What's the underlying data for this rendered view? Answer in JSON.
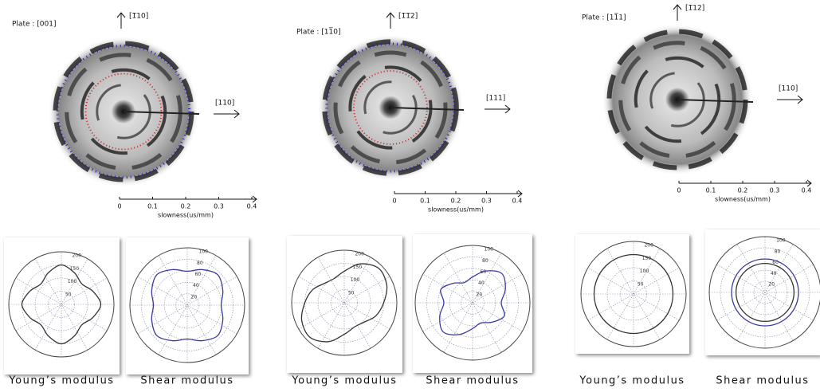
{
  "panels": [
    {
      "plate": "Plate : [001]",
      "up_direction": "[1̅10]",
      "right_direction": "[110]",
      "slowness_axis": {
        "label": "slowness(us/mm)",
        "xlim": [
          0,
          0.4
        ],
        "xticks": [
          0,
          0.1,
          0.2,
          0.3,
          0.4
        ]
      },
      "plots": [
        {
          "type": "polar",
          "caption": "Young’s modulus",
          "rlim": [
            0,
            200
          ],
          "rticks": [
            50,
            100,
            150,
            200
          ],
          "theta": [
            0,
            22.5,
            45,
            67.5,
            90,
            112.5,
            135,
            157.5,
            180,
            202.5,
            225,
            247.5,
            270,
            292.5,
            315,
            337.5
          ],
          "series": [
            {
              "color": "#333333",
              "values": [
                150,
                130,
                110,
                130,
                150,
                130,
                110,
                130,
                150,
                130,
                110,
                130,
                150,
                130,
                110,
                130
              ]
            }
          ]
        },
        {
          "type": "polar",
          "caption": "Shear modulus",
          "rlim": [
            0,
            100
          ],
          "rticks": [
            20,
            40,
            60,
            80,
            100
          ],
          "theta": [
            0,
            22.5,
            45,
            67.5,
            90,
            112.5,
            135,
            157.5,
            180,
            202.5,
            225,
            247.5,
            270,
            292.5,
            315,
            337.5
          ],
          "series": [
            {
              "color": "#3a3aa0",
              "values": [
                59,
                67,
                75,
                67,
                59,
                67,
                75,
                67,
                59,
                67,
                75,
                67,
                59,
                67,
                75,
                67
              ]
            }
          ]
        }
      ]
    },
    {
      "plate": "Plate : [11̅0]",
      "up_direction": "[1̅1̅2]",
      "right_direction": "[111]",
      "slowness_axis": {
        "label": "slowness(us/mm)",
        "xlim": [
          0,
          0.4
        ],
        "xticks": [
          0,
          0.1,
          0.2,
          0.3,
          0.4
        ]
      },
      "plots": [
        {
          "type": "polar",
          "caption": "Young’s modulus",
          "rlim": [
            0,
            200
          ],
          "rticks": [
            50,
            100,
            150,
            200
          ],
          "theta": [
            0,
            22.5,
            45,
            67.5,
            90,
            112.5,
            135,
            157.5,
            180,
            202.5,
            225,
            247.5,
            270,
            292.5,
            315,
            337.5
          ],
          "series": [
            {
              "color": "#333333",
              "values": [
                150,
                175,
                185,
                160,
                120,
                100,
                105,
                130,
                150,
                175,
                185,
                160,
                120,
                100,
                105,
                130
              ]
            }
          ]
        },
        {
          "type": "polar",
          "caption": "Shear modulus",
          "rlim": [
            0,
            100
          ],
          "rticks": [
            20,
            40,
            60,
            80,
            100
          ],
          "theta": [
            0,
            22.5,
            45,
            67.5,
            90,
            112.5,
            135,
            157.5,
            180,
            202.5,
            225,
            247.5,
            270,
            292.5,
            315,
            337.5
          ],
          "series": [
            {
              "color": "#3a3aa0",
              "values": [
                50,
                62,
                72,
                60,
                45,
                38,
                48,
                60,
                50,
                62,
                72,
                60,
                45,
                38,
                48,
                60
              ]
            }
          ]
        }
      ]
    },
    {
      "plate": "Plate : [11̅1]",
      "up_direction": "[1̅12]",
      "right_direction": "[110]",
      "slowness_axis": {
        "label": "slowness(us/mm)",
        "xlim": [
          0,
          0.4
        ],
        "xticks": [
          0,
          0.1,
          0.2,
          0.3,
          0.4
        ]
      },
      "plots": [
        {
          "type": "polar",
          "caption": "Young’s modulus",
          "rlim": [
            0,
            200
          ],
          "rticks": [
            50,
            100,
            150,
            200
          ],
          "theta": [
            0,
            22.5,
            45,
            67.5,
            90,
            112.5,
            135,
            157.5,
            180,
            202.5,
            225,
            247.5,
            270,
            292.5,
            315,
            337.5
          ],
          "series": [
            {
              "color": "#333333",
              "values": [
                150,
                150,
                150,
                150,
                150,
                150,
                150,
                150,
                150,
                150,
                150,
                150,
                150,
                150,
                150,
                150
              ]
            }
          ]
        },
        {
          "type": "polar",
          "caption": "Shear modulus",
          "rlim": [
            0,
            100
          ],
          "rticks": [
            20,
            40,
            60,
            80,
            100
          ],
          "theta": [
            0,
            22.5,
            45,
            67.5,
            90,
            112.5,
            135,
            157.5,
            180,
            202.5,
            225,
            247.5,
            270,
            292.5,
            315,
            337.5
          ],
          "series": [
            {
              "color": "#3a3aa0",
              "values": [
                60,
                60,
                60,
                60,
                60,
                60,
                60,
                60,
                60,
                60,
                60,
                60,
                60,
                60,
                60,
                60
              ]
            },
            {
              "color": "#333333",
              "values": [
                52,
                52,
                52,
                52,
                52,
                52,
                52,
                52,
                52,
                52,
                52,
                52,
                52,
                52,
                52,
                52
              ]
            }
          ]
        }
      ]
    }
  ]
}
